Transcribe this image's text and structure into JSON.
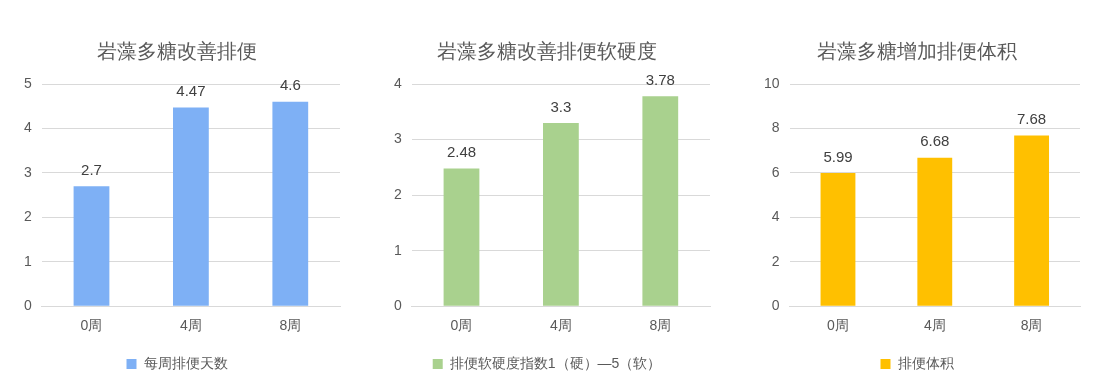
{
  "chart_data": [
    {
      "type": "bar",
      "title": "岩藻多糖改善排便",
      "categories": [
        "0周",
        "4周",
        "8周"
      ],
      "series": [
        {
          "name": "每周排便天数",
          "color": "#7eb0f5",
          "values": [
            2.7,
            4.47,
            4.6
          ]
        }
      ],
      "ylim": [
        0,
        5
      ],
      "yticks": [
        0,
        1,
        2,
        3,
        4,
        5
      ],
      "grid": "y",
      "data_labels": true,
      "legend": "bottom"
    },
    {
      "type": "bar",
      "title": "岩藻多糖改善排便软硬度",
      "categories": [
        "0周",
        "4周",
        "8周"
      ],
      "series": [
        {
          "name": "排便软硬度指数1（硬）—5（软）",
          "color": "#a9d18e",
          "values": [
            2.48,
            3.3,
            3.78
          ]
        }
      ],
      "ylim": [
        0,
        4
      ],
      "yticks": [
        0,
        1,
        2,
        3,
        4
      ],
      "grid": "y",
      "data_labels": true,
      "legend": "bottom"
    },
    {
      "type": "bar",
      "title": "岩藻多糖增加排便体积",
      "categories": [
        "0周",
        "4周",
        "8周"
      ],
      "series": [
        {
          "name": "排便体积",
          "color": "#ffc000",
          "values": [
            5.99,
            6.68,
            7.68
          ]
        }
      ],
      "ylim": [
        0,
        10
      ],
      "yticks": [
        0,
        2,
        4,
        6,
        8,
        10
      ],
      "grid": "y",
      "data_labels": true,
      "legend": "bottom"
    }
  ]
}
